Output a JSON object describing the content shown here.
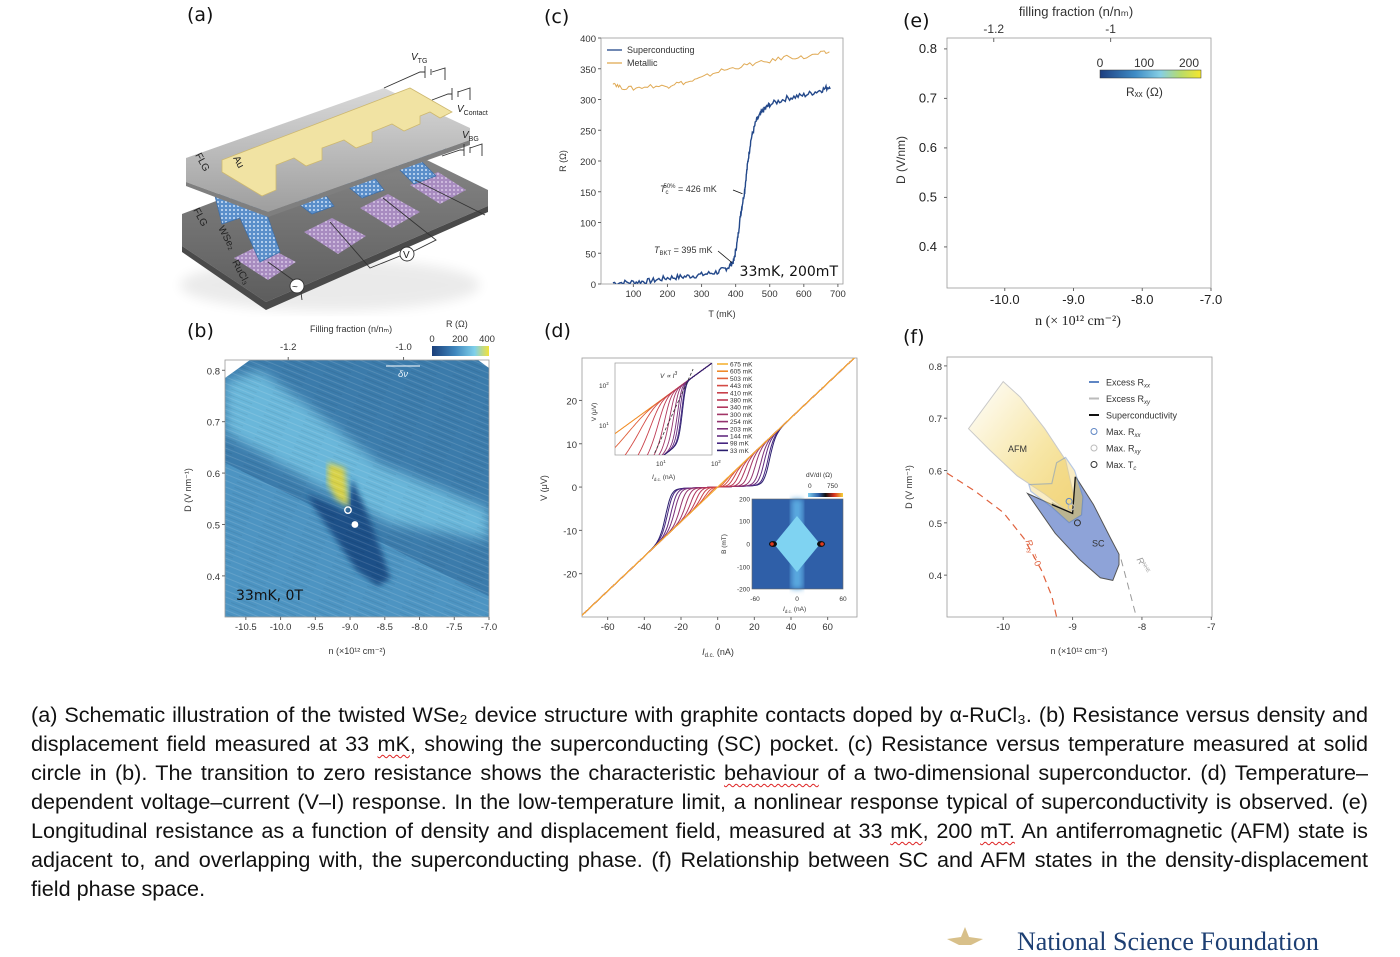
{
  "panel_labels": {
    "a": "(a)",
    "b": "(b)",
    "c": "(c)",
    "d": "(d)",
    "e": "(e)",
    "f": "(f)"
  },
  "schematic": {
    "v_tg": {
      "main": "V",
      "sub": "TG"
    },
    "v_contact": {
      "main": "V",
      "sub": "Contact"
    },
    "v_bg": {
      "main": "V",
      "sub": "BG"
    },
    "flg_top": "FLG",
    "flg_bottom": "FLG",
    "au": "Au",
    "wse2": "WSe₂",
    "rucl3": "RuCl₃",
    "voltmeter": "V",
    "ac_source": "~",
    "colors": {
      "gold": "#f1e3a3",
      "plate": "#bdbdbd",
      "lattice": "#6b9fd6",
      "pads": "#b79ac9"
    }
  },
  "overlays": {
    "panel_b": "33mK, 0T",
    "panel_c": "33mK, 200mT"
  },
  "chart_data": [
    {
      "panel": "b",
      "type": "heatmap",
      "xlabel": "n (×10¹² cm⁻²)",
      "ylabel": "D (V nm⁻¹)",
      "top_label": "Filling fraction (n/nₘ)",
      "xlim": [
        -10.8,
        -7.0
      ],
      "ylim": [
        0.32,
        0.82
      ],
      "xticks": [
        "-10.5",
        "-10.0",
        "-9.5",
        "-9.0",
        "-8.5",
        "-8.0",
        "-7.5",
        "-7.0"
      ],
      "yticks": [
        "0.4",
        "0.5",
        "0.6",
        "0.7",
        "0.8"
      ],
      "top_ticks": [
        {
          "label": "-1.2",
          "n": -9.89
        },
        {
          "label": "-1.0",
          "n": -8.23
        }
      ],
      "colorbar": {
        "title": "R (Ω)",
        "ticks": [
          "0",
          "200",
          "400"
        ],
        "range": [
          0,
          400
        ],
        "colors": [
          "#1b3f7a",
          "#3f86bd",
          "#7fd0ea",
          "#f2e23a"
        ]
      },
      "scale_bar": "δν",
      "markers": [
        {
          "kind": "open-circle",
          "n": -9.03,
          "D": 0.528
        },
        {
          "kind": "filled-circle",
          "n": -8.93,
          "D": 0.5
        }
      ]
    },
    {
      "panel": "c",
      "type": "line",
      "xlabel": "T (mK)",
      "ylabel": "R (Ω)",
      "xlim": [
        5,
        715
      ],
      "ylim": [
        0,
        400
      ],
      "xticks": [
        "100",
        "200",
        "300",
        "400",
        "500",
        "600",
        "700"
      ],
      "yticks": [
        "0",
        "50",
        "100",
        "150",
        "200",
        "250",
        "300",
        "350",
        "400"
      ],
      "legend": "top-left",
      "series": [
        {
          "name": "Superconducting",
          "color": "#23488a",
          "x": [
            40,
            100,
            150,
            200,
            250,
            300,
            350,
            380,
            395,
            405,
            415,
            426,
            435,
            445,
            460,
            480,
            500,
            550,
            600,
            650,
            680
          ],
          "y": [
            2,
            3,
            5,
            10,
            12,
            15,
            20,
            28,
            38,
            70,
            115,
            150,
            195,
            235,
            265,
            282,
            292,
            302,
            307,
            315,
            322
          ]
        },
        {
          "name": "Metallic",
          "color": "#e0aa55",
          "x": [
            40,
            60,
            100,
            150,
            200,
            220,
            260,
            300,
            350,
            400,
            450,
            500,
            550,
            600,
            650,
            680
          ],
          "y": [
            328,
            320,
            318,
            322,
            321,
            326,
            328,
            335,
            346,
            352,
            358,
            362,
            370,
            368,
            375,
            377
          ]
        }
      ],
      "annotations": [
        {
          "text": "T",
          "sub": "c",
          "sup": "50%",
          "rest": " = 426 mK",
          "T": 426,
          "R": 150
        },
        {
          "text": "T",
          "sub": "BKT",
          "rest": " = 395 mK",
          "T": 395,
          "R": 38
        }
      ]
    },
    {
      "panel": "d",
      "type": "line",
      "xlabel": {
        "main": "I",
        "sub": "d.c.",
        "rest": " (nA)"
      },
      "ylabel": "V (μV)",
      "xlim": [
        -74,
        76
      ],
      "ylim": [
        -30,
        29.8
      ],
      "xticks": [
        "-60",
        "-40",
        "-20",
        "0",
        "20",
        "40",
        "60"
      ],
      "yticks": [
        "-20",
        "-10",
        "0",
        "10",
        "20"
      ],
      "normal_resistance_uV_per_nA": 0.4,
      "legend": "top-right-inside",
      "series": [
        {
          "name": "675 mK",
          "color": "#f5b335",
          "critical_current_nA": 0
        },
        {
          "name": "605 mK",
          "color": "#f08a2a",
          "critical_current_nA": 0
        },
        {
          "name": "503 mK",
          "color": "#e0603a",
          "critical_current_nA": 2
        },
        {
          "name": "443 mK",
          "color": "#d44a44",
          "critical_current_nA": 5
        },
        {
          "name": "410 mK",
          "color": "#c8404a",
          "critical_current_nA": 8
        },
        {
          "name": "380 mK",
          "color": "#bd3a55",
          "critical_current_nA": 11
        },
        {
          "name": "340 mK",
          "color": "#b0375e",
          "critical_current_nA": 14
        },
        {
          "name": "300 mK",
          "color": "#a23566",
          "critical_current_nA": 17
        },
        {
          "name": "254 mK",
          "color": "#93336e",
          "critical_current_nA": 20
        },
        {
          "name": "203 mK",
          "color": "#7c2f78",
          "critical_current_nA": 23
        },
        {
          "name": "144 mK",
          "color": "#622b80",
          "critical_current_nA": 25
        },
        {
          "name": "98 mK",
          "color": "#452580",
          "critical_current_nA": 27
        },
        {
          "name": "33 mK",
          "color": "#2a1e6e",
          "critical_current_nA": 28
        }
      ],
      "inset_loglog": {
        "xlabel": {
          "main": "I",
          "sub": "d.c.",
          "rest": " (nA)"
        },
        "ylabel": "V (μV)",
        "xticks": [
          {
            "base": "10",
            "exp": "1"
          },
          {
            "base": "10",
            "exp": "2"
          }
        ],
        "yticks": [
          {
            "base": "10",
            "exp": "1"
          },
          {
            "base": "10",
            "exp": "2"
          }
        ],
        "annotation": {
          "main": "V ∝ I",
          "sup": "3"
        }
      },
      "inset_map": {
        "type": "heatmap",
        "xlabel": {
          "main": "I",
          "sub": "d.c.",
          "rest": " (nA)"
        },
        "ylabel": "B (mT)",
        "xticks": [
          "-60",
          "0",
          "60"
        ],
        "yticks": [
          "200",
          "100",
          "0",
          "-100",
          "-200"
        ],
        "colorbar": {
          "title": "dV/dI (Ω)",
          "ticks": [
            "0",
            "750"
          ]
        }
      }
    },
    {
      "panel": "e",
      "type": "heatmap",
      "xlabel": "n (× 10¹² cm⁻²)",
      "ylabel": "D (V/nm)",
      "top_label": "filling fraction (n/nₘ)",
      "xlim": [
        -10.84,
        -7.0
      ],
      "ylim": [
        0.317,
        0.822
      ],
      "xticks": [
        "-10.0",
        "-9.0",
        "-8.0",
        "-7.0"
      ],
      "yticks": [
        "0.4",
        "0.5",
        "0.6",
        "0.7",
        "0.8"
      ],
      "top_ticks": [
        {
          "label": "-1.2",
          "n": -10.16
        },
        {
          "label": "-1",
          "n": -8.46
        }
      ],
      "colorbar": {
        "title": "Rₓₓ (Ω)",
        "ticks": [
          "0",
          "100",
          "200"
        ],
        "range": [
          0,
          230
        ],
        "colors": [
          "#1e3f80",
          "#3f8cc6",
          "#86cfe4",
          "#b8dc6a",
          "#f5e72d"
        ]
      }
    },
    {
      "panel": "f",
      "type": "phase-diagram",
      "xlabel": "n (×10¹² cm⁻²)",
      "ylabel": "D (V nm⁻¹)",
      "xlim": [
        -10.81,
        -6.99
      ],
      "ylim": [
        0.32,
        0.817
      ],
      "xticks": [
        "-10",
        "-9",
        "-8",
        "-7"
      ],
      "yticks": [
        "0.4",
        "0.5",
        "0.6",
        "0.7",
        "0.8"
      ],
      "legend": [
        {
          "label": "Excess R",
          "sub": "xx",
          "kind": "line",
          "color": "#5f86c4"
        },
        {
          "label": "Excess R",
          "sub": "xy",
          "kind": "line",
          "color": "#bbbbbb"
        },
        {
          "label": "Superconductivity",
          "sub": "",
          "kind": "line",
          "color": "#111111"
        },
        {
          "label": "Max. R",
          "sub": "xx",
          "kind": "circle",
          "color": "#5f86c4"
        },
        {
          "label": "Max. R",
          "sub": "xy",
          "kind": "circle",
          "color": "#bbbbbb"
        },
        {
          "label": "Max. T",
          "sub": "c",
          "kind": "circle",
          "color": "#333333"
        }
      ],
      "regions": {
        "AFM": {
          "label": "AFM",
          "color": "#f6e3a0",
          "points": [
            [
              -10.5,
              0.68
            ],
            [
              -10.2,
              0.64
            ],
            [
              -9.8,
              0.59
            ],
            [
              -9.4,
              0.555
            ],
            [
              -9.15,
              0.53
            ],
            [
              -9.02,
              0.52
            ],
            [
              -8.97,
              0.545
            ],
            [
              -9.1,
              0.62
            ],
            [
              -9.4,
              0.68
            ],
            [
              -9.75,
              0.74
            ],
            [
              -10.0,
              0.77
            ]
          ]
        },
        "SC": {
          "label": "SC",
          "color": "#8ea3d8",
          "points": [
            [
              -9.65,
              0.556
            ],
            [
              -9.3,
              0.535
            ],
            [
              -9.0,
              0.518
            ],
            [
              -8.95,
              0.587
            ],
            [
              -8.7,
              0.535
            ],
            [
              -8.45,
              0.47
            ],
            [
              -8.33,
              0.44
            ],
            [
              -8.33,
              0.42
            ],
            [
              -8.42,
              0.39
            ],
            [
              -8.6,
              0.395
            ],
            [
              -8.9,
              0.43
            ],
            [
              -9.25,
              0.48
            ]
          ]
        },
        "excess_rxx": {
          "points": [
            [
              -9.63,
              0.573
            ],
            [
              -9.3,
              0.575
            ],
            [
              -9.23,
              0.615
            ],
            [
              -9.1,
              0.625
            ],
            [
              -8.97,
              0.6
            ],
            [
              -8.85,
              0.55
            ],
            [
              -8.87,
              0.515
            ],
            [
              -9.05,
              0.5
            ],
            [
              -9.3,
              0.53
            ],
            [
              -9.6,
              0.56
            ]
          ]
        },
        "rxy_zero": {
          "label": "R",
          "sub": "xy",
          "rest": " = 0",
          "color": "#e0623e",
          "points": [
            [
              -10.81,
              0.595
            ],
            [
              -10.4,
              0.56
            ],
            [
              -10.0,
              0.52
            ],
            [
              -9.7,
              0.47
            ],
            [
              -9.45,
              0.41
            ],
            [
              -9.3,
              0.36
            ],
            [
              -9.23,
              0.32
            ]
          ]
        },
        "r_nhe": {
          "label": "R",
          "sup": "NHE",
          "color": "#999999",
          "points": [
            [
              -8.3,
              0.43
            ],
            [
              -8.2,
              0.38
            ],
            [
              -8.12,
              0.34
            ],
            [
              -8.08,
              0.32
            ]
          ]
        }
      },
      "markers": [
        {
          "name": "Max. Rxx",
          "n": -9.05,
          "D": 0.541,
          "color": "#5f86c4"
        },
        {
          "name": "Max. Rxy",
          "n": -9.02,
          "D": 0.53,
          "color": "#bbbbbb"
        },
        {
          "name": "Max. Tc",
          "n": -8.93,
          "D": 0.5,
          "color": "#333333"
        }
      ]
    }
  ],
  "caption": {
    "segments": [
      {
        "text": "(a) Schematic illustration of the twisted WSe₂ device structure with graphite contacts doped by α-RuCl₃. (b) Resistance versus density and displacement field measured at 33 ",
        "spell": false
      },
      {
        "text": "mK",
        "spell": true
      },
      {
        "text": ", showing the superconducting (SC) pocket. (c) Resistance versus temperature measured at solid circle in (b). The transition to zero resistance shows the characteristic ",
        "spell": false
      },
      {
        "text": "behaviour",
        "spell": true
      },
      {
        "text": " of a two-dimensional superconductor. (d) Temperature–dependent voltage–current (V–I) response. In the low-temperature limit, a nonlinear response typical of superconductivity is observed.  (e) Longitudinal resistance as a function of density and displacement field, measured at 33 ",
        "spell": false
      },
      {
        "text": "mK",
        "spell": true
      },
      {
        "text": ", 200 ",
        "spell": false
      },
      {
        "text": "mT.",
        "spell": true
      },
      {
        "text": " An antiferromagnetic (AFM) state is adjacent to, and overlapping with, the superconducting phase. (f) Relationship between SC and AFM states in the density-displacement field phase space.",
        "spell": false
      }
    ]
  },
  "logo": {
    "text": "National Science Foundation",
    "color": "#1d3f73",
    "accent": "#d8c08a"
  }
}
